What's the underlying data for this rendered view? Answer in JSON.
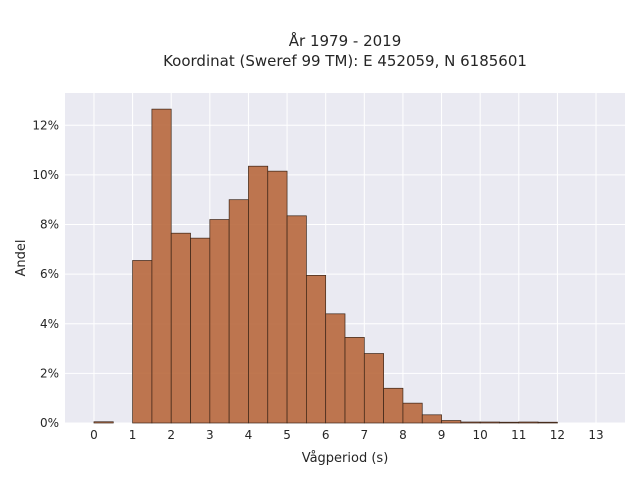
{
  "chart_data": {
    "type": "bar",
    "title_lines": [
      "År 1979 - 2019",
      "Koordinat (Sweref 99 TM): E 452059, N 6185601"
    ],
    "xlabel": "Vågperiod (s)",
    "ylabel": "Andel",
    "x_ticks": [
      "0",
      "1",
      "2",
      "3",
      "4",
      "5",
      "6",
      "7",
      "8",
      "9",
      "10",
      "11",
      "12",
      "13"
    ],
    "y_ticks": [
      "0%",
      "2%",
      "4%",
      "6%",
      "8%",
      "10%",
      "12%"
    ],
    "bin_width": 0.5,
    "bin_left_edges": [
      0,
      0.5,
      1,
      1.5,
      2,
      2.5,
      3,
      3.5,
      4,
      4.5,
      5,
      5.5,
      6,
      6.5,
      7,
      7.5,
      8,
      8.5,
      9,
      9.5,
      10,
      10.5,
      11,
      11.5,
      12,
      12.5
    ],
    "values": [
      0.05,
      0,
      6.55,
      12.65,
      7.65,
      7.45,
      8.2,
      9.0,
      10.35,
      10.15,
      8.35,
      5.95,
      4.4,
      3.45,
      2.8,
      1.4,
      0.8,
      0.33,
      0.1,
      0.04,
      0.04,
      0.02,
      0.04,
      0.02,
      0,
      0
    ],
    "xlim": [
      -0.75,
      13.75
    ],
    "ylim": [
      0,
      13.3
    ],
    "grid": true,
    "colors": {
      "plot_background": "#EAEAF2",
      "grid": "#FFFFFF",
      "bar_fill": "#B8683D",
      "bar_edge": "#3A2417"
    }
  }
}
